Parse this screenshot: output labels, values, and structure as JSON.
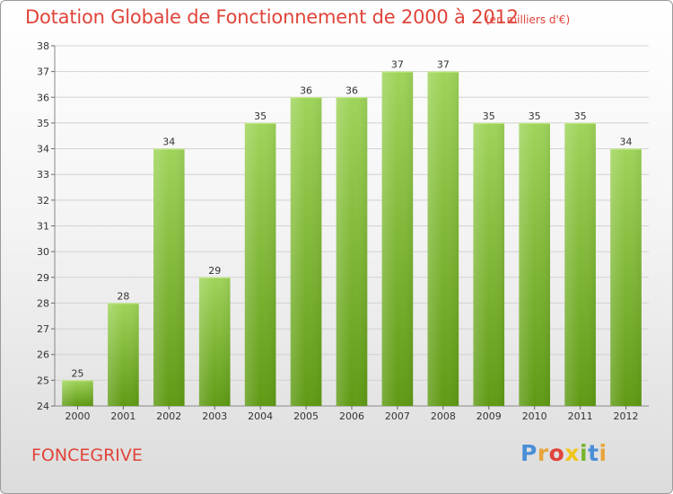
{
  "title": "Dotation Globale de Fonctionnement de 2000 à 2012",
  "subtitle": "(en milliers d'€)",
  "commune": "FONCEGRIVE",
  "logo": {
    "letters": [
      "P",
      "r",
      "o",
      "x",
      "i",
      "t",
      "i"
    ],
    "colors": [
      "#4a8fd6",
      "#e8a43a",
      "#e0443a",
      "#f0c419",
      "#78b52e",
      "#4a8fd6",
      "#e8a43a"
    ]
  },
  "colors": {
    "title": "#e0443a",
    "bar_top": "#9fd45a",
    "bar_bottom": "#5f9a14",
    "grid": "#d2d2d2",
    "axis_text": "#333333"
  },
  "chart_data": {
    "type": "bar",
    "title": "Dotation Globale de Fonctionnement de 2000 à 2012",
    "subtitle": "(en milliers d'€)",
    "xlabel": "",
    "ylabel": "",
    "categories": [
      "2000",
      "2001",
      "2002",
      "2003",
      "2004",
      "2005",
      "2006",
      "2007",
      "2008",
      "2009",
      "2010",
      "2011",
      "2012"
    ],
    "values": [
      25,
      28,
      34,
      29,
      35,
      36,
      36,
      37,
      37,
      35,
      35,
      35,
      34
    ],
    "ylim": [
      24,
      38
    ],
    "yticks": [
      24,
      25,
      26,
      27,
      28,
      29,
      30,
      31,
      32,
      33,
      34,
      35,
      36,
      37,
      38
    ],
    "grid": true,
    "data_labels": true
  }
}
